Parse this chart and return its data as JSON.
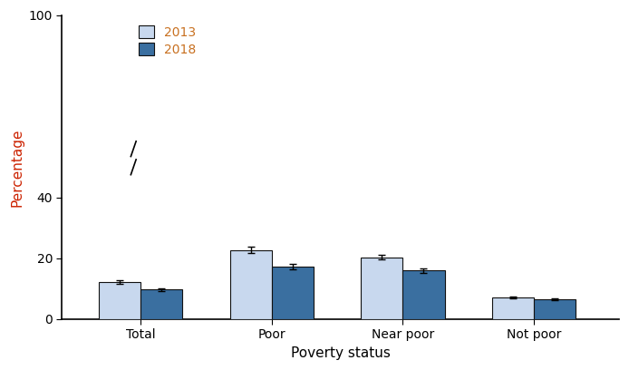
{
  "categories": [
    "Total",
    "Poor",
    "Near poor",
    "Not poor"
  ],
  "values_2013": [
    12.1,
    22.7,
    20.4,
    7.1
  ],
  "values_2018": [
    9.7,
    17.3,
    16.0,
    6.6
  ],
  "errors_2013": [
    0.6,
    1.0,
    0.8,
    0.3
  ],
  "errors_2018": [
    0.5,
    0.9,
    0.7,
    0.3
  ],
  "color_2013": "#c8d8ee",
  "color_2018": "#3a6fa0",
  "edgecolor": "#111111",
  "xlabel": "Poverty status",
  "ylabel": "Percentage",
  "ylim": [
    0,
    100
  ],
  "yticks": [
    0,
    20,
    40,
    100
  ],
  "legend_labels": [
    "2013",
    "2018"
  ],
  "legend_text_color": "#c87020",
  "bar_width": 0.32,
  "axis_label_fontsize": 11,
  "tick_fontsize": 10,
  "legend_fontsize": 10,
  "ylabel_color": "#cc2200"
}
